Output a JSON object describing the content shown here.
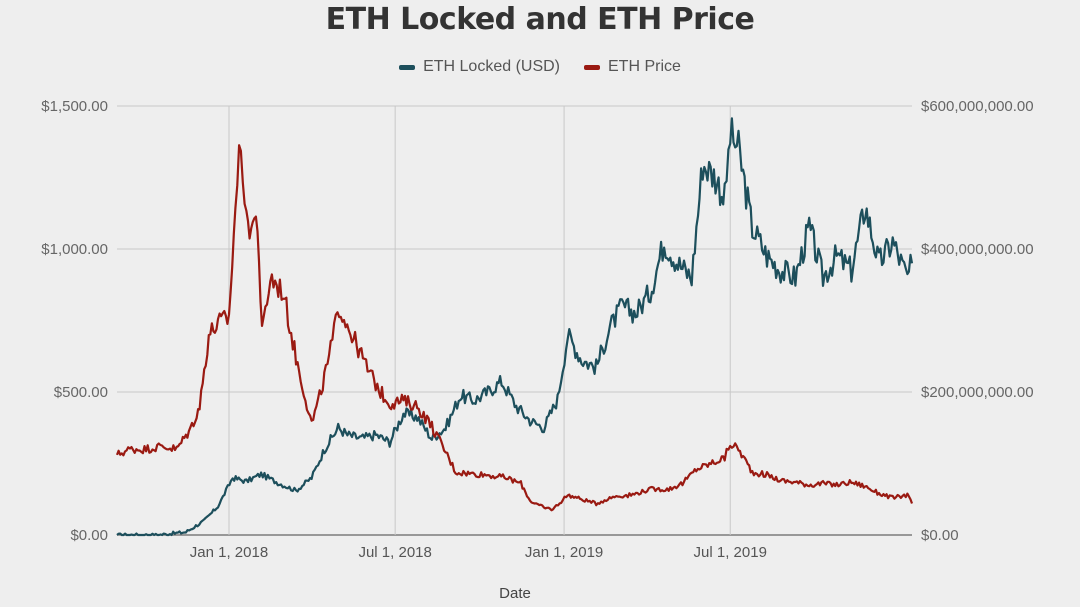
{
  "chart_data": {
    "type": "line",
    "title": "ETH Locked and ETH Price",
    "xlabel": "Date",
    "ylabel_left": "",
    "ylabel_right": "",
    "x_range": [
      "2017-09-01",
      "2020-01-15"
    ],
    "x_ticks": [
      "Jan 1, 2018",
      "Jul 1, 2018",
      "Jan 1, 2019",
      "Jul 1, 2019"
    ],
    "x_tick_dates": [
      "2018-01-01",
      "2018-07-01",
      "2019-01-01",
      "2019-07-01"
    ],
    "y_left": {
      "ylim": [
        0,
        1500
      ],
      "ticks": [
        0,
        500,
        1000,
        1500
      ],
      "tick_labels": [
        "$0.00",
        "$500.00",
        "$1,000.00",
        "$1,500.00"
      ]
    },
    "y_right": {
      "ylim": [
        0,
        600000000
      ],
      "ticks": [
        0,
        200000000,
        400000000,
        600000000
      ],
      "tick_labels": [
        "$0.00",
        "$200,000,000.00",
        "$400,000,000.00",
        "$600,000,000.00"
      ]
    },
    "grid": true,
    "legend_position": "top-center",
    "series": [
      {
        "name": "ETH Locked (USD)",
        "axis": "right",
        "color": "#1d4f5c",
        "dates": [
          "2017-09-01",
          "2017-10-15",
          "2017-11-15",
          "2017-12-05",
          "2017-12-20",
          "2018-01-05",
          "2018-01-20",
          "2018-02-05",
          "2018-02-25",
          "2018-03-15",
          "2018-04-01",
          "2018-04-15",
          "2018-04-30",
          "2018-05-10",
          "2018-05-25",
          "2018-06-10",
          "2018-06-25",
          "2018-07-10",
          "2018-07-25",
          "2018-08-10",
          "2018-08-25",
          "2018-09-10",
          "2018-09-25",
          "2018-10-10",
          "2018-10-25",
          "2018-11-10",
          "2018-11-25",
          "2018-12-10",
          "2018-12-25",
          "2019-01-05",
          "2019-01-20",
          "2019-02-05",
          "2019-02-20",
          "2019-03-05",
          "2019-03-20",
          "2019-04-05",
          "2019-04-20",
          "2019-05-05",
          "2019-05-20",
          "2019-06-01",
          "2019-06-15",
          "2019-06-25",
          "2019-07-01",
          "2019-07-10",
          "2019-07-25",
          "2019-08-10",
          "2019-08-25",
          "2019-09-10",
          "2019-09-25",
          "2019-10-10",
          "2019-10-25",
          "2019-11-10",
          "2019-11-25",
          "2019-12-10",
          "2019-12-25",
          "2020-01-10",
          "2020-01-15"
        ],
        "values": [
          0,
          0,
          4000000,
          20000000,
          40000000,
          80000000,
          75000000,
          85000000,
          72000000,
          62000000,
          80000000,
          120000000,
          150000000,
          140000000,
          135000000,
          140000000,
          130000000,
          170000000,
          165000000,
          135000000,
          150000000,
          195000000,
          188000000,
          200000000,
          215000000,
          180000000,
          160000000,
          150000000,
          190000000,
          280000000,
          245000000,
          235000000,
          290000000,
          320000000,
          310000000,
          340000000,
          410000000,
          380000000,
          360000000,
          520000000,
          500000000,
          470000000,
          560000000,
          540000000,
          430000000,
          390000000,
          370000000,
          360000000,
          430000000,
          360000000,
          390000000,
          370000000,
          460000000,
          380000000,
          410000000,
          360000000,
          380000000
        ]
      },
      {
        "name": "ETH Price",
        "axis": "left",
        "color": "#9a1a12",
        "dates": [
          "2017-09-01",
          "2017-09-15",
          "2017-10-01",
          "2017-10-20",
          "2017-11-05",
          "2017-11-20",
          "2017-11-30",
          "2017-12-10",
          "2017-12-20",
          "2018-01-01",
          "2018-01-08",
          "2018-01-14",
          "2018-01-20",
          "2018-02-01",
          "2018-02-06",
          "2018-02-15",
          "2018-03-01",
          "2018-03-15",
          "2018-04-01",
          "2018-04-08",
          "2018-04-20",
          "2018-05-01",
          "2018-05-15",
          "2018-06-01",
          "2018-06-15",
          "2018-06-25",
          "2018-07-10",
          "2018-07-25",
          "2018-08-10",
          "2018-08-25",
          "2018-09-05",
          "2018-09-20",
          "2018-10-10",
          "2018-10-30",
          "2018-11-15",
          "2018-11-25",
          "2018-12-10",
          "2018-12-20",
          "2019-01-05",
          "2019-01-20",
          "2019-02-05",
          "2019-02-25",
          "2019-03-15",
          "2019-04-05",
          "2019-04-25",
          "2019-05-10",
          "2019-05-25",
          "2019-06-10",
          "2019-06-25",
          "2019-07-01",
          "2019-07-10",
          "2019-07-25",
          "2019-08-10",
          "2019-08-25",
          "2019-09-10",
          "2019-09-25",
          "2019-10-10",
          "2019-10-25",
          "2019-11-10",
          "2019-11-25",
          "2019-12-10",
          "2019-12-25",
          "2020-01-10",
          "2020-01-15"
        ],
        "values": [
          280,
          300,
          300,
          310,
          300,
          370,
          450,
          700,
          740,
          760,
          1150,
          1390,
          1080,
          1100,
          700,
          900,
          850,
          620,
          390,
          460,
          620,
          800,
          700,
          580,
          500,
          460,
          470,
          450,
          380,
          290,
          220,
          215,
          210,
          200,
          180,
          120,
          95,
          90,
          140,
          125,
          110,
          135,
          140,
          160,
          160,
          180,
          230,
          250,
          270,
          320,
          300,
          220,
          210,
          190,
          185,
          175,
          180,
          175,
          185,
          170,
          145,
          130,
          140,
          110
        ]
      }
    ]
  }
}
